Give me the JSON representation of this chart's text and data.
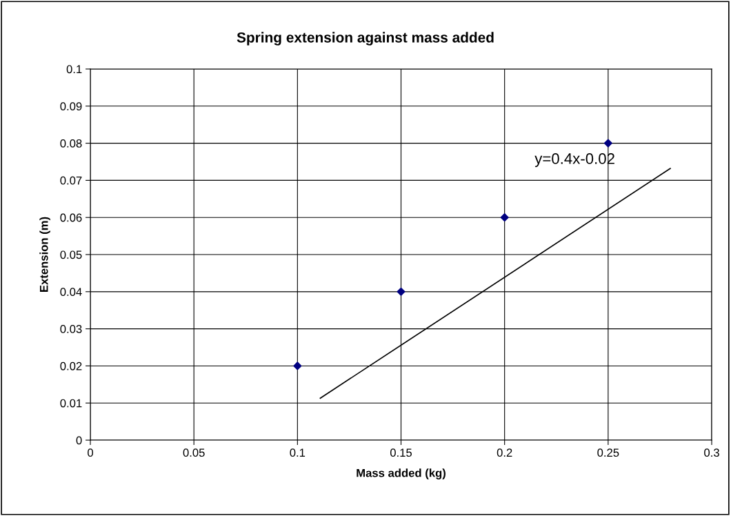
{
  "chart_data": {
    "type": "scatter",
    "title": "Spring extension against mass added",
    "xlabel": "Mass added (kg)",
    "ylabel": "Extension (m)",
    "x": [
      0.1,
      0.15,
      0.2,
      0.25
    ],
    "series": [
      {
        "color": "#000080",
        "values": [
          0.02,
          0.04,
          0.06,
          0.08
        ],
        "marker": "diamond"
      },
      {
        "type": "line",
        "color": "#000000",
        "x": [
          0.111,
          0.28
        ],
        "values": [
          0.0113,
          0.0732
        ],
        "marker": "none"
      }
    ],
    "annotations": [
      "y=0.4x-0.02"
    ],
    "xlim": [
      0,
      0.3
    ],
    "xticks": [
      0,
      0.05,
      0.1,
      0.15,
      0.2,
      0.25,
      0.3
    ],
    "ylim": [
      0,
      0.1
    ],
    "yticks": [
      0,
      0.01,
      0.02,
      0.03,
      0.04,
      0.05,
      0.06,
      0.07,
      0.08,
      0.09,
      0.1
    ],
    "grid": true,
    "legend": false
  }
}
